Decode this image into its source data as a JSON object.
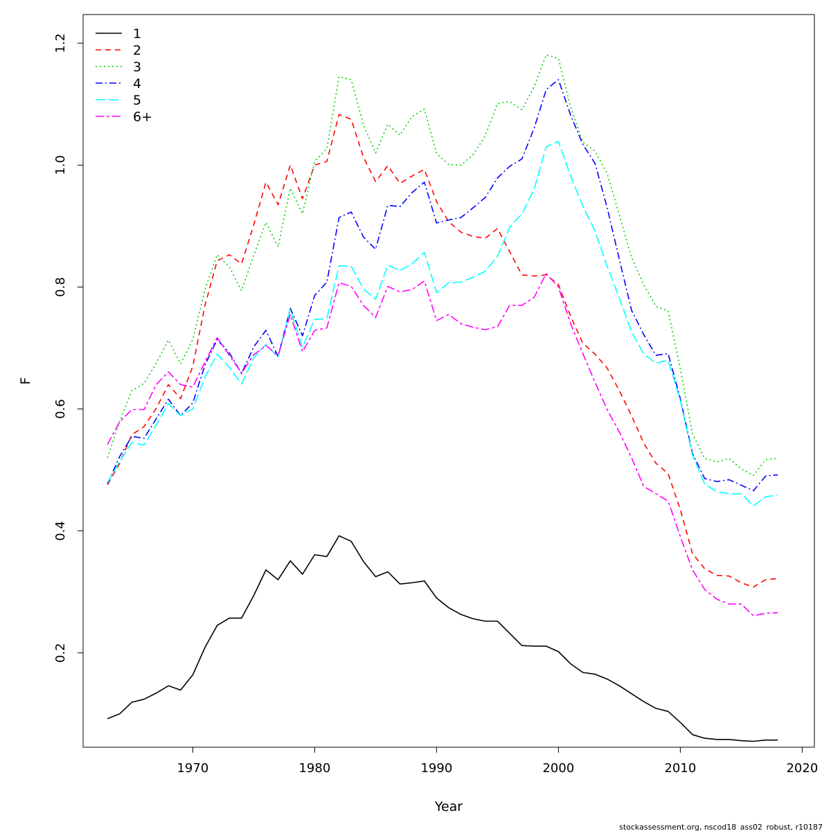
{
  "chart_data": {
    "type": "line",
    "title": "",
    "xlabel": "Year",
    "ylabel": "F",
    "xlim": [
      1961,
      2021
    ],
    "ylim": [
      0.0453,
      1.2469
    ],
    "xticks": [
      1970,
      1980,
      1990,
      2000,
      2010,
      2020
    ],
    "yticks": [
      0.2,
      0.4,
      0.6,
      0.8,
      1.0,
      1.2
    ],
    "ytick_labels": [
      "0.2",
      "0.4",
      "0.6",
      "0.8",
      "1.0",
      "1.2"
    ],
    "grid": false,
    "legend_position": "top-left",
    "footer": "stockassessment.org, nscod18_ass02_robust, r10187",
    "x": [
      1963,
      1964,
      1965,
      1966,
      1967,
      1968,
      1969,
      1970,
      1971,
      1972,
      1973,
      1974,
      1975,
      1976,
      1977,
      1978,
      1979,
      1980,
      1981,
      1982,
      1983,
      1984,
      1985,
      1986,
      1987,
      1988,
      1989,
      1990,
      1991,
      1992,
      1993,
      1994,
      1995,
      1996,
      1997,
      1998,
      1999,
      2000,
      2001,
      2002,
      2003,
      2004,
      2005,
      2006,
      2007,
      2008,
      2009,
      2010,
      2011,
      2012,
      2013,
      2014,
      2015,
      2016,
      2017,
      2018
    ],
    "series": [
      {
        "name": "1",
        "color": "#000000",
        "dash": "",
        "values": [
          0.092,
          0.1,
          0.119,
          0.124,
          0.134,
          0.146,
          0.139,
          0.164,
          0.209,
          0.245,
          0.257,
          0.257,
          0.294,
          0.336,
          0.32,
          0.351,
          0.329,
          0.361,
          0.358,
          0.392,
          0.383,
          0.35,
          0.325,
          0.333,
          0.313,
          0.315,
          0.318,
          0.29,
          0.274,
          0.263,
          0.256,
          0.252,
          0.252,
          0.232,
          0.212,
          0.211,
          0.211,
          0.202,
          0.182,
          0.168,
          0.165,
          0.157,
          0.146,
          0.133,
          0.12,
          0.109,
          0.104,
          0.086,
          0.066,
          0.06,
          0.058,
          0.058,
          0.056,
          0.055,
          0.057,
          0.057
        ]
      },
      {
        "name": "2",
        "color": "#ff0000",
        "dash": "8,6",
        "values": [
          0.476,
          0.511,
          0.558,
          0.571,
          0.601,
          0.64,
          0.617,
          0.67,
          0.77,
          0.843,
          0.853,
          0.838,
          0.902,
          0.972,
          0.935,
          1.0,
          0.945,
          1.0,
          1.006,
          1.083,
          1.075,
          1.013,
          0.973,
          0.999,
          0.97,
          0.982,
          0.993,
          0.94,
          0.907,
          0.89,
          0.883,
          0.88,
          0.896,
          0.858,
          0.82,
          0.818,
          0.82,
          0.804,
          0.752,
          0.708,
          0.69,
          0.667,
          0.63,
          0.589,
          0.544,
          0.511,
          0.494,
          0.435,
          0.363,
          0.338,
          0.327,
          0.326,
          0.315,
          0.308,
          0.32,
          0.322
        ]
      },
      {
        "name": "3",
        "color": "#00cd00",
        "dash": "2,4",
        "values": [
          0.52,
          0.58,
          0.63,
          0.642,
          0.675,
          0.713,
          0.674,
          0.714,
          0.796,
          0.853,
          0.833,
          0.794,
          0.852,
          0.906,
          0.866,
          0.962,
          0.92,
          1.006,
          1.027,
          1.145,
          1.14,
          1.066,
          1.02,
          1.067,
          1.049,
          1.08,
          1.092,
          1.019,
          1.001,
          1.0,
          1.017,
          1.048,
          1.101,
          1.104,
          1.091,
          1.128,
          1.181,
          1.175,
          1.095,
          1.038,
          1.023,
          0.986,
          0.918,
          0.848,
          0.804,
          0.768,
          0.761,
          0.666,
          0.559,
          0.519,
          0.513,
          0.519,
          0.502,
          0.491,
          0.517,
          0.519
        ]
      },
      {
        "name": "4",
        "color": "#0000ff",
        "dash": "10,4,2,4",
        "values": [
          0.477,
          0.522,
          0.555,
          0.552,
          0.584,
          0.616,
          0.589,
          0.61,
          0.672,
          0.714,
          0.692,
          0.658,
          0.702,
          0.729,
          0.686,
          0.765,
          0.72,
          0.786,
          0.808,
          0.914,
          0.923,
          0.882,
          0.862,
          0.934,
          0.932,
          0.955,
          0.972,
          0.905,
          0.91,
          0.914,
          0.93,
          0.947,
          0.979,
          0.998,
          1.01,
          1.06,
          1.124,
          1.14,
          1.082,
          1.034,
          1.003,
          0.93,
          0.845,
          0.762,
          0.722,
          0.688,
          0.691,
          0.617,
          0.527,
          0.486,
          0.481,
          0.484,
          0.475,
          0.466,
          0.49,
          0.492
        ]
      },
      {
        "name": "5",
        "color": "#00ffff",
        "dash": "14,5",
        "values": [
          0.479,
          0.514,
          0.545,
          0.541,
          0.574,
          0.609,
          0.589,
          0.6,
          0.652,
          0.69,
          0.668,
          0.641,
          0.684,
          0.706,
          0.685,
          0.763,
          0.701,
          0.747,
          0.748,
          0.835,
          0.834,
          0.797,
          0.78,
          0.836,
          0.827,
          0.838,
          0.857,
          0.791,
          0.807,
          0.808,
          0.816,
          0.826,
          0.85,
          0.898,
          0.92,
          0.96,
          1.03,
          1.039,
          0.982,
          0.933,
          0.892,
          0.834,
          0.782,
          0.727,
          0.69,
          0.675,
          0.68,
          0.614,
          0.524,
          0.477,
          0.464,
          0.461,
          0.461,
          0.441,
          0.456,
          0.459
        ]
      },
      {
        "name": "6+",
        "color": "#ff00ff",
        "dash": "12,4,4,4",
        "values": [
          0.542,
          0.579,
          0.599,
          0.599,
          0.64,
          0.661,
          0.64,
          0.636,
          0.677,
          0.717,
          0.688,
          0.659,
          0.689,
          0.704,
          0.688,
          0.755,
          0.694,
          0.729,
          0.733,
          0.807,
          0.801,
          0.77,
          0.75,
          0.801,
          0.792,
          0.796,
          0.81,
          0.745,
          0.755,
          0.74,
          0.734,
          0.73,
          0.735,
          0.77,
          0.77,
          0.783,
          0.822,
          0.8,
          0.74,
          0.691,
          0.644,
          0.599,
          0.562,
          0.52,
          0.473,
          0.461,
          0.449,
          0.391,
          0.336,
          0.304,
          0.288,
          0.28,
          0.28,
          0.261,
          0.265,
          0.266
        ]
      }
    ]
  }
}
